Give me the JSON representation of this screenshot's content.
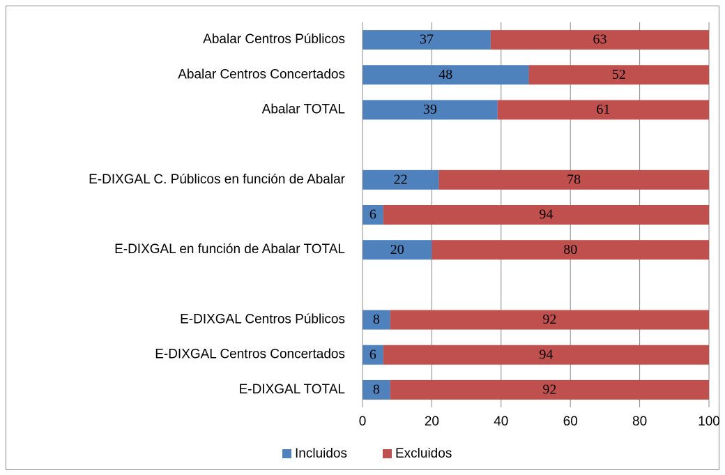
{
  "chart_data": {
    "type": "stacked-bar-horizontal",
    "categories": [
      "Abalar Centros Públicos",
      "Abalar Centros Concertados",
      "Abalar TOTAL",
      null,
      "E-DIXGAL C. Públicos en función de Abalar",
      null,
      "E-DIXGAL en función de Abalar TOTAL",
      null,
      "E-DIXGAL Centros Públicos",
      "E-DIXGAL Centros Concertados",
      "E-DIXGAL TOTAL"
    ],
    "series": [
      {
        "name": "Incluidos",
        "color": "#4f81bd",
        "values": [
          37,
          48,
          39,
          null,
          22,
          6,
          20,
          null,
          8,
          6,
          8
        ]
      },
      {
        "name": "Excluidos",
        "color": "#c0504d",
        "values": [
          63,
          52,
          61,
          null,
          78,
          94,
          80,
          null,
          92,
          94,
          92
        ]
      }
    ],
    "xlim": [
      0,
      100
    ],
    "xticks": [
      0,
      20,
      40,
      60,
      80,
      100
    ],
    "grid": true,
    "legend": "bottom"
  }
}
